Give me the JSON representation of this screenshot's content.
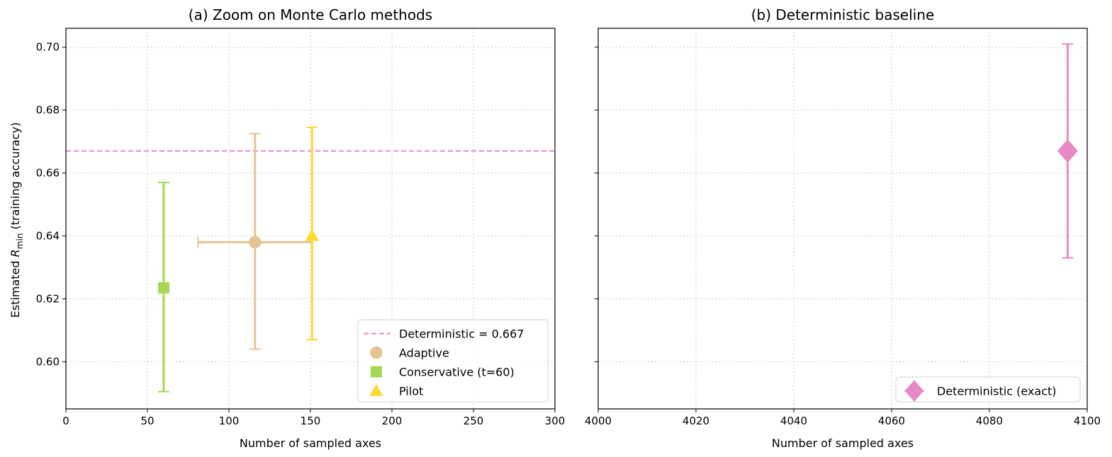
{
  "chart_data": [
    {
      "type": "scatter",
      "title": "(a) Zoom on Monte Carlo methods",
      "xlabel": "Number of sampled axes",
      "ylabel_prefix": "Estimated ",
      "ylabel_var": "R",
      "ylabel_sub": "min",
      "ylabel_suffix": " (training accuracy)",
      "xlim": [
        0,
        300
      ],
      "ylim": [
        0.585,
        0.706
      ],
      "xticks": [
        0,
        50,
        100,
        150,
        200,
        250,
        300
      ],
      "yticks": [
        0.6,
        0.62,
        0.64,
        0.66,
        0.68,
        0.7
      ],
      "grid": true,
      "legend_position": "lower-right",
      "reference_line": {
        "label": "Deterministic = 0.667",
        "y": 0.667,
        "color": "#e78ac3",
        "style": "dashed"
      },
      "series": [
        {
          "name": "Adaptive",
          "marker": "circle",
          "color": "#e5c494",
          "x": 116,
          "y": 0.638,
          "xerr": [
            81,
            151
          ],
          "yerr": [
            0.604,
            0.6725
          ]
        },
        {
          "name": "Conservative (t=60)",
          "marker": "square",
          "color": "#a6d854",
          "x": 60,
          "y": 0.6235,
          "yerr": [
            0.5905,
            0.657
          ]
        },
        {
          "name": "Pilot",
          "marker": "triangle",
          "color": "#ffd92f",
          "x": 151,
          "y": 0.64,
          "yerr": [
            0.607,
            0.6745
          ]
        }
      ]
    },
    {
      "type": "scatter",
      "title": "(b) Deterministic baseline",
      "xlabel": "Number of sampled axes",
      "xlim": [
        4000,
        4100
      ],
      "ylim": [
        0.585,
        0.706
      ],
      "xticks": [
        4000,
        4020,
        4040,
        4060,
        4080,
        4100
      ],
      "yticks": [
        0.6,
        0.62,
        0.64,
        0.66,
        0.68,
        0.7
      ],
      "grid": true,
      "legend_position": "lower-right",
      "series": [
        {
          "name": "Deterministic (exact)",
          "marker": "diamond",
          "color": "#e78ac3",
          "x": 4096,
          "y": 0.667,
          "yerr": [
            0.633,
            0.701
          ]
        }
      ]
    }
  ]
}
